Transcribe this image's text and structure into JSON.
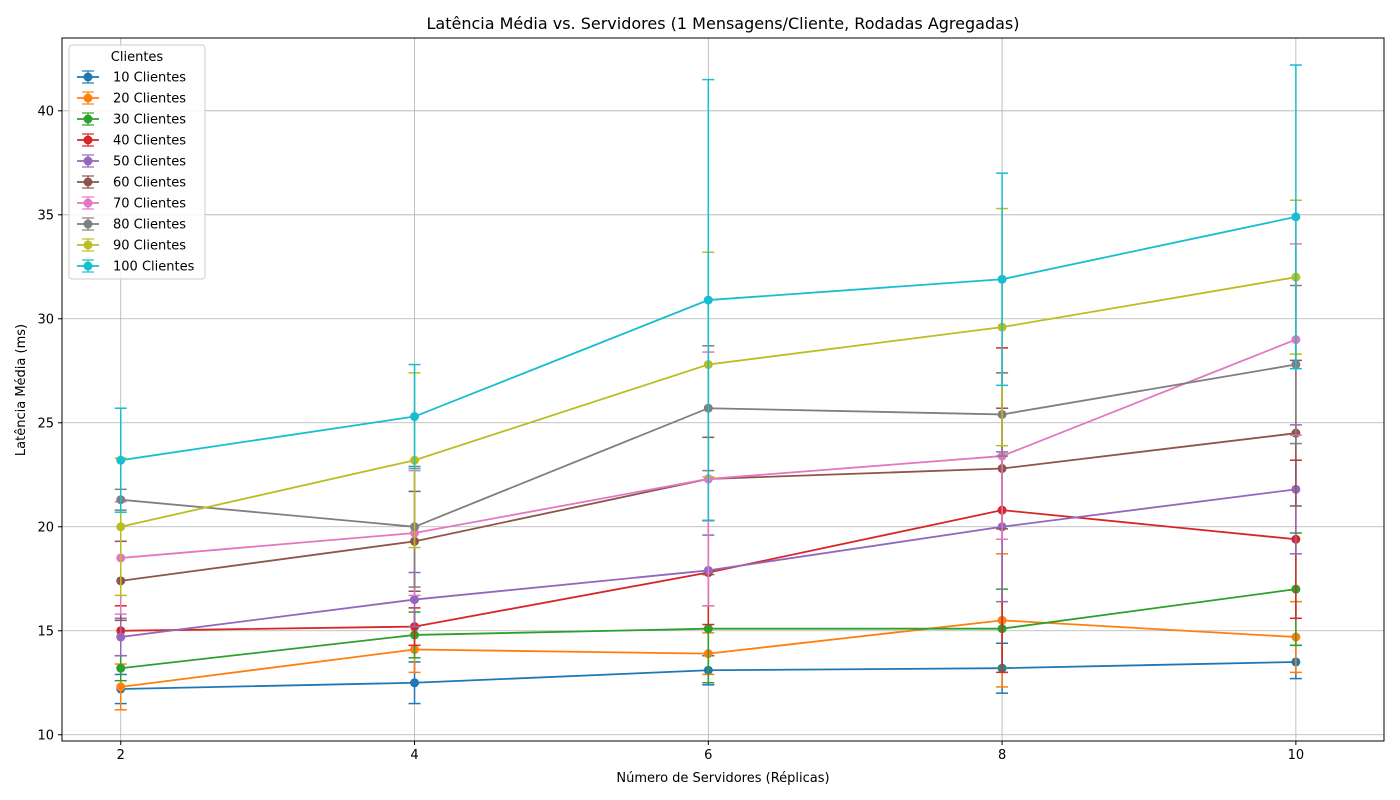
{
  "chart_data": {
    "type": "line",
    "title": "Latência Média vs. Servidores (1 Mensagens/Cliente, Rodadas Agregadas)",
    "xlabel": "Número de Servidores (Réplicas)",
    "ylabel": "Latência Média (ms)",
    "x": [
      2,
      4,
      6,
      8,
      10
    ],
    "xticks": [
      "2",
      "4",
      "6",
      "8",
      "10"
    ],
    "yticks": [
      "10",
      "15",
      "20",
      "25",
      "30",
      "35",
      "40"
    ],
    "xlim": [
      1.6,
      10.6
    ],
    "ylim": [
      9.7,
      43.5
    ],
    "grid": true,
    "error_bars": true,
    "legend": {
      "title": "Clientes",
      "placement": "upper-left"
    },
    "series": [
      {
        "name": "10 Clientes",
        "color": "#1f77b4",
        "values": [
          12.2,
          12.5,
          13.1,
          13.2,
          13.5
        ],
        "err": [
          0.7,
          1.0,
          0.7,
          1.2,
          0.8
        ]
      },
      {
        "name": "20 Clientes",
        "color": "#ff7f0e",
        "values": [
          12.3,
          14.1,
          13.9,
          15.5,
          14.7
        ],
        "err": [
          1.1,
          1.1,
          1.0,
          3.2,
          1.7
        ]
      },
      {
        "name": "30 Clientes",
        "color": "#2ca02c",
        "values": [
          13.2,
          14.8,
          15.1,
          15.1,
          17.0
        ],
        "err": [
          0.6,
          1.1,
          2.6,
          1.9,
          2.7
        ]
      },
      {
        "name": "40 Clientes",
        "color": "#d62728",
        "values": [
          15.0,
          15.2,
          17.8,
          20.8,
          19.4
        ],
        "err": [
          1.2,
          0.9,
          2.5,
          7.8,
          3.8
        ]
      },
      {
        "name": "50 Clientes",
        "color": "#9467bd",
        "values": [
          14.7,
          16.5,
          17.9,
          20.0,
          21.8
        ],
        "err": [
          0.9,
          1.3,
          1.7,
          3.6,
          3.1
        ]
      },
      {
        "name": "60 Clientes",
        "color": "#8c564b",
        "values": [
          17.4,
          19.3,
          22.3,
          22.8,
          24.5
        ],
        "err": [
          1.9,
          2.4,
          2.0,
          2.9,
          3.5
        ]
      },
      {
        "name": "70 Clientes",
        "color": "#e377c2",
        "values": [
          18.5,
          19.7,
          22.3,
          23.4,
          29.0
        ],
        "err": [
          2.7,
          3.0,
          6.1,
          4.0,
          4.6
        ]
      },
      {
        "name": "80 Clientes",
        "color": "#7f7f7f",
        "values": [
          21.3,
          20.0,
          25.7,
          25.4,
          27.8
        ],
        "err": [
          0.5,
          2.9,
          3.0,
          2.0,
          3.8
        ]
      },
      {
        "name": "90 Clientes",
        "color": "#bcbd22",
        "values": [
          20.0,
          23.2,
          27.8,
          29.6,
          32.0
        ],
        "err": [
          3.3,
          4.2,
          5.4,
          5.7,
          3.7
        ]
      },
      {
        "name": "100 Clientes",
        "color": "#17becf",
        "values": [
          23.2,
          25.3,
          30.9,
          31.9,
          34.9
        ],
        "err": [
          2.5,
          2.5,
          10.6,
          5.1,
          7.3
        ]
      }
    ]
  }
}
